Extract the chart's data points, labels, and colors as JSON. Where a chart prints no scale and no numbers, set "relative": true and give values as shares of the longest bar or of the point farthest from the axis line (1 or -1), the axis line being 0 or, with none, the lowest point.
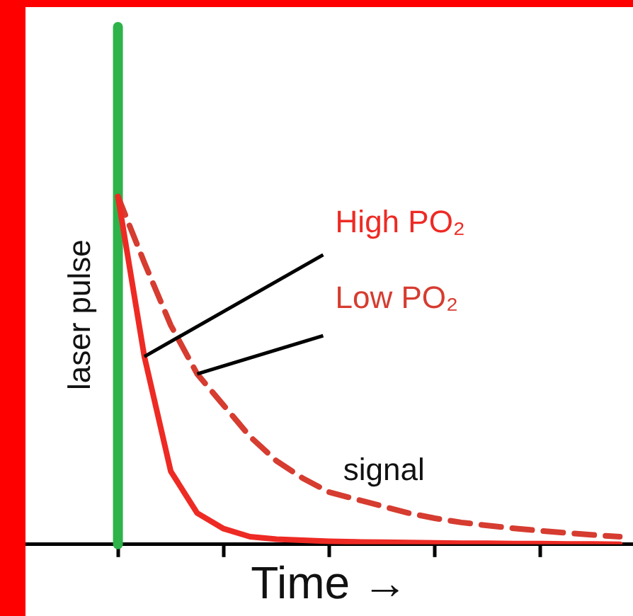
{
  "chart_data": {
    "type": "line",
    "relative": true,
    "xlabel": "Time →",
    "categories": [
      null,
      null,
      null,
      null,
      null,
      null,
      null,
      null,
      null,
      null,
      null,
      null,
      null,
      null,
      null,
      null,
      null,
      null,
      null,
      null,
      null,
      null,
      null
    ],
    "grid": false,
    "legend": false,
    "marker": "none",
    "annotations": [
      "signal"
    ],
    "ref_lines": [
      {
        "axis": "x",
        "label": "laser pulse",
        "color": "#2db34a"
      }
    ],
    "series": [
      {
        "name": "High PO₂",
        "color": "#ee2a24",
        "line_style": "solid",
        "values": [
          null,
          null,
          null,
          1,
          0.54,
          0.21,
          0.09,
          0.045,
          0.022,
          0.015,
          0.012,
          0.009,
          0.007,
          0.006,
          0.005,
          0.004,
          0.003,
          0.003,
          0.002,
          0.002,
          0.001,
          0.001,
          0
        ]
      },
      {
        "name": "Low PO₂",
        "color": "#d63c30",
        "line_style": "dashed",
        "values": [
          null,
          null,
          null,
          1,
          0.81,
          0.63,
          0.49,
          0.4,
          0.31,
          0.24,
          0.19,
          0.15,
          0.13,
          0.11,
          0.09,
          0.075,
          0.063,
          0.054,
          0.046,
          0.039,
          0.033,
          0.027,
          0.022
        ]
      }
    ]
  }
}
